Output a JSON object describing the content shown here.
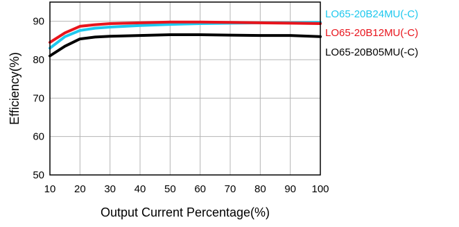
{
  "chart_data": {
    "type": "line",
    "xlabel": "Output Current Percentage(%)",
    "ylabel": "Efficiency(%)",
    "xlim": [
      10,
      100
    ],
    "ylim": [
      50,
      95
    ],
    "xticks": [
      10,
      20,
      30,
      40,
      50,
      60,
      70,
      80,
      90,
      100
    ],
    "yticks": [
      50,
      60,
      70,
      80,
      90
    ],
    "grid": true,
    "legend_position": "right",
    "series": [
      {
        "name": "LO65-20B24MU(-C)",
        "color": "#1ec8ee",
        "x": [
          10,
          15,
          20,
          25,
          30,
          40,
          50,
          60,
          70,
          80,
          90,
          100
        ],
        "y": [
          83.0,
          86.0,
          87.6,
          88.2,
          88.5,
          88.9,
          89.2,
          89.4,
          89.5,
          89.6,
          89.6,
          89.7
        ]
      },
      {
        "name": "LO65-20B12MU(-C)",
        "color": "#e8141c",
        "x": [
          10,
          15,
          20,
          25,
          30,
          40,
          50,
          60,
          70,
          80,
          90,
          100
        ],
        "y": [
          84.5,
          87.0,
          88.7,
          89.1,
          89.4,
          89.6,
          89.8,
          89.8,
          89.7,
          89.6,
          89.5,
          89.4
        ]
      },
      {
        "name": "LO65-20B05MU(-C)",
        "color": "#000000",
        "x": [
          10,
          15,
          20,
          25,
          30,
          40,
          50,
          60,
          70,
          80,
          90,
          100
        ],
        "y": [
          81.0,
          83.5,
          85.4,
          85.9,
          86.1,
          86.3,
          86.5,
          86.5,
          86.4,
          86.3,
          86.3,
          86.0
        ]
      }
    ]
  }
}
